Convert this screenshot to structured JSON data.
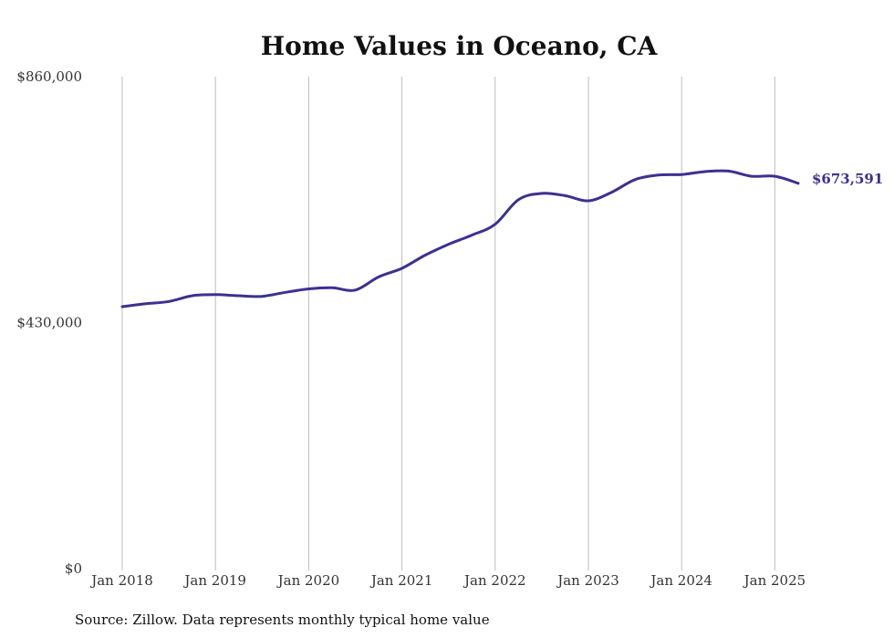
{
  "chart_data": {
    "type": "line",
    "title": "Home Values in Oceano, CA",
    "source": "Source: Zillow. Data represents monthly typical home value",
    "ylim": [
      0,
      860000
    ],
    "yticks": [
      {
        "value": 0,
        "label": "$0"
      },
      {
        "value": 430000,
        "label": "$430,000"
      },
      {
        "value": 860000,
        "label": "$860,000"
      }
    ],
    "xticks": [
      "Jan 2018",
      "Jan 2019",
      "Jan 2020",
      "Jan 2021",
      "Jan 2022",
      "Jan 2023",
      "Jan 2024",
      "Jan 2025"
    ],
    "grid": "vertical",
    "line_color": "#3b3191",
    "end_label": "$673,591",
    "series": [
      {
        "x": [
          "2018-01",
          "2018-04",
          "2018-07",
          "2018-10",
          "2019-01",
          "2019-04",
          "2019-07",
          "2019-10",
          "2020-01",
          "2020-04",
          "2020-07",
          "2020-10",
          "2021-01",
          "2021-04",
          "2021-07",
          "2021-10",
          "2022-01",
          "2022-04",
          "2022-07",
          "2022-10",
          "2023-01",
          "2023-04",
          "2023-07",
          "2023-10",
          "2024-01",
          "2024-04",
          "2024-07",
          "2024-10",
          "2025-01",
          "2025-04"
        ],
        "values": [
          458000,
          463000,
          467000,
          477000,
          479000,
          477000,
          476000,
          483000,
          489000,
          491000,
          487000,
          510000,
          525000,
          548000,
          567000,
          583000,
          602000,
          645000,
          656000,
          652000,
          643000,
          658000,
          680000,
          688000,
          689000,
          694000,
          695000,
          686000,
          686000,
          673591
        ]
      }
    ]
  }
}
